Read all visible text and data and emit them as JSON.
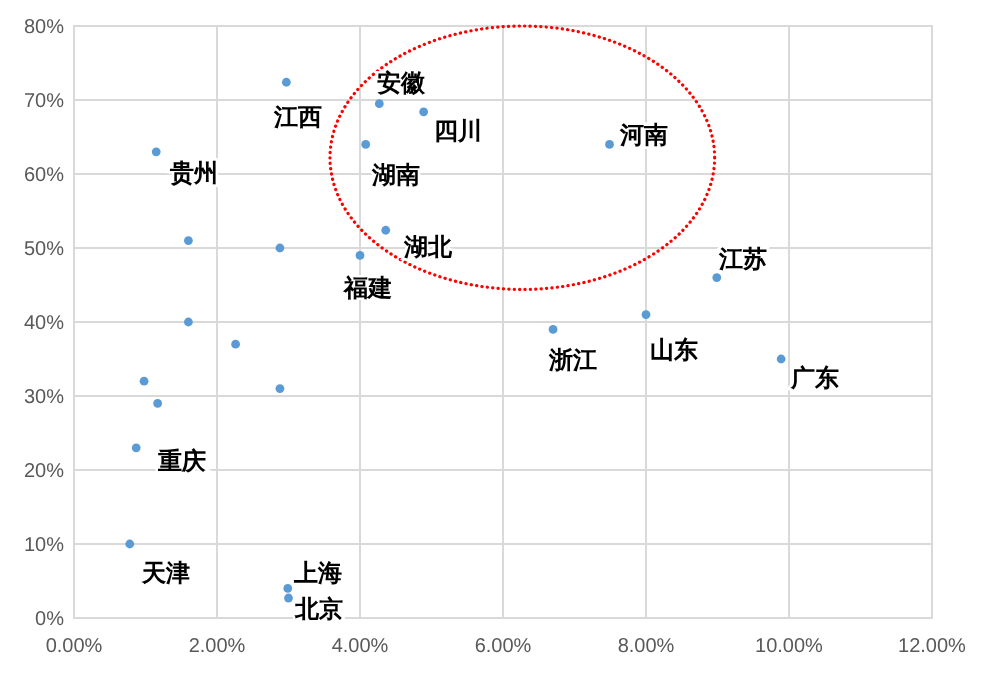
{
  "chart_data": {
    "type": "scatter",
    "color": "#5b9bd5",
    "marker": "circle",
    "grid": true,
    "x": [
      1.15,
      1.6,
      1.6,
      2.97,
      2.88,
      4.0,
      4.08,
      4.27,
      4.89,
      4.36,
      7.49,
      8.99,
      8.0,
      6.7,
      9.89,
      2.26,
      0.98,
      1.17,
      2.88,
      0.87,
      0.78,
      2.99,
      3.0
    ],
    "values": [
      63,
      51,
      40,
      72.4,
      50,
      49,
      64,
      69.5,
      68.4,
      52.4,
      64,
      46,
      41,
      39,
      35,
      37,
      32,
      29,
      31,
      23,
      10,
      4,
      2.7
    ],
    "xlim": [
      0,
      12
    ],
    "xticks": [
      {
        "value": 0,
        "label": "0.00%"
      },
      {
        "value": 2,
        "label": "2.00%"
      },
      {
        "value": 4,
        "label": "4.00%"
      },
      {
        "value": 6,
        "label": "6.00%"
      },
      {
        "value": 8,
        "label": "8.00%"
      },
      {
        "value": 10,
        "label": "10.00%"
      },
      {
        "value": 12,
        "label": "12.00%"
      }
    ],
    "ylim": [
      0,
      80
    ],
    "yticks": [
      {
        "value": 0,
        "label": "0%"
      },
      {
        "value": 10,
        "label": "10%"
      },
      {
        "value": 20,
        "label": "20%"
      },
      {
        "value": 30,
        "label": "30%"
      },
      {
        "value": 40,
        "label": "40%"
      },
      {
        "value": 50,
        "label": "50%"
      },
      {
        "value": 60,
        "label": "60%"
      },
      {
        "value": 70,
        "label": "70%"
      },
      {
        "value": 80,
        "label": "80%"
      }
    ],
    "annotations": [
      {
        "text": "贵州",
        "x": 1.15,
        "y": 63
      },
      {
        "text": "江西",
        "x": 2.97,
        "y": 72.4
      },
      {
        "text": "安徽",
        "x": 4.27,
        "y": 69.5
      },
      {
        "text": "四川",
        "x": 4.89,
        "y": 68.4
      },
      {
        "text": "湖南",
        "x": 4.08,
        "y": 64
      },
      {
        "text": "湖北",
        "x": 4.36,
        "y": 52.4
      },
      {
        "text": "福建",
        "x": 4.0,
        "y": 49
      },
      {
        "text": "河南",
        "x": 7.49,
        "y": 64
      },
      {
        "text": "江苏",
        "x": 8.99,
        "y": 46
      },
      {
        "text": "山东",
        "x": 8.0,
        "y": 41
      },
      {
        "text": "浙江",
        "x": 6.7,
        "y": 39
      },
      {
        "text": "广东",
        "x": 9.89,
        "y": 35
      },
      {
        "text": "重庆",
        "x": 0.87,
        "y": 23
      },
      {
        "text": "天津",
        "x": 0.78,
        "y": 10
      },
      {
        "text": "上海",
        "x": 2.99,
        "y": 4
      },
      {
        "text": "北京",
        "x": 3.0,
        "y": 2.7
      }
    ]
  }
}
